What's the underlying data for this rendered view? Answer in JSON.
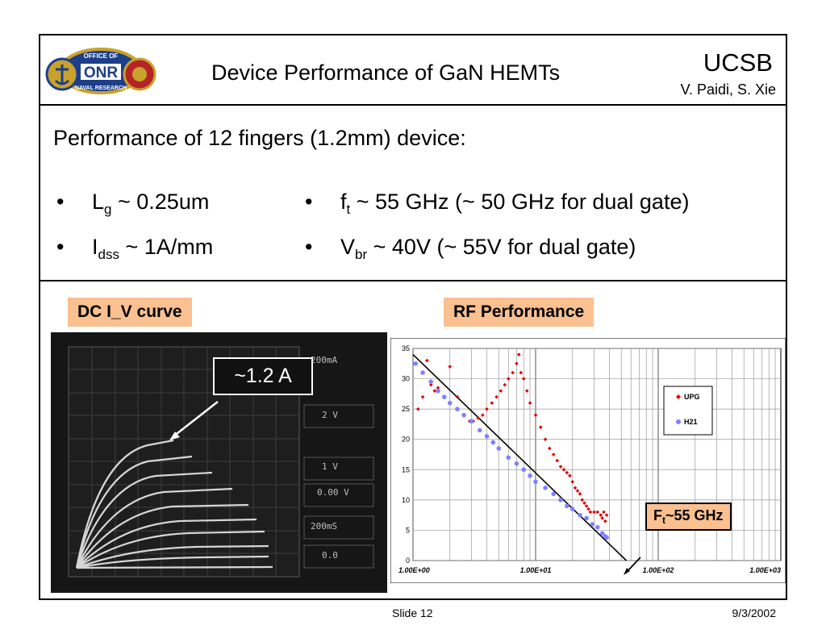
{
  "header": {
    "title": "Device Performance of GaN HEMTs",
    "org": "UCSB",
    "authors": "V. Paidi, S. Xie",
    "logo": {
      "top_text": "OFFICE OF",
      "main_text": "ONR",
      "bottom_text": "NAVAL RESEARCH"
    }
  },
  "intro": {
    "subtitle": "Performance of 12 fingers (1.2mm) device:",
    "bullets": [
      {
        "symbol": "L",
        "sub": "g",
        "text": " ~ 0.25um"
      },
      {
        "symbol": "f",
        "sub": "t",
        "text": " ~ 55 GHz (~ 50 GHz for dual gate)"
      },
      {
        "symbol": "I",
        "sub": "dss",
        "text": " ~  1A/mm"
      },
      {
        "symbol": "V",
        "sub": "br",
        "text": " ~ 40V (~ 55V for dual gate)"
      }
    ]
  },
  "dc": {
    "label": "DC I_V curve",
    "callout": "~1.2 A",
    "screen_texts": [
      "200mA",
      "2 V",
      "1 V",
      "0.00 V",
      "200mS",
      "0.0"
    ]
  },
  "rf": {
    "label": "RF Performance",
    "ft_main": "F",
    "ft_sub": "t",
    "ft_rest": "~55 GHz"
  },
  "chart_data": {
    "type": "scatter",
    "title": "",
    "xlabel": "",
    "ylabel": "",
    "x_scale": "log",
    "xlim": [
      1,
      1000
    ],
    "ylim": [
      0,
      35
    ],
    "yticks": [
      0,
      5,
      10,
      15,
      20,
      25,
      30,
      35
    ],
    "xtick_labels": [
      "1.00E+00",
      "1.00E+01",
      "1.00E+02",
      "1.00E+03"
    ],
    "grid": true,
    "legend": {
      "placement": "right",
      "entries": [
        "UPG",
        "H21"
      ]
    },
    "series": [
      {
        "name": "UPG",
        "color": "#e00000",
        "points": [
          [
            1.1,
            25
          ],
          [
            1.2,
            27
          ],
          [
            1.3,
            33
          ],
          [
            1.4,
            29
          ],
          [
            1.5,
            28
          ],
          [
            1.6,
            28.5
          ],
          [
            2.0,
            32
          ],
          [
            2.3,
            27
          ],
          [
            2.6,
            24
          ],
          [
            2.9,
            23
          ],
          [
            3.1,
            23
          ],
          [
            3.4,
            23.5
          ],
          [
            3.7,
            24
          ],
          [
            4.0,
            25
          ],
          [
            4.4,
            26
          ],
          [
            4.8,
            27
          ],
          [
            5.2,
            28
          ],
          [
            5.6,
            29
          ],
          [
            6.0,
            30
          ],
          [
            6.5,
            31
          ],
          [
            7.0,
            32.5
          ],
          [
            7.3,
            34
          ],
          [
            7.6,
            31
          ],
          [
            8.0,
            30
          ],
          [
            8.5,
            28
          ],
          [
            9.0,
            26
          ],
          [
            10,
            24
          ],
          [
            11,
            22
          ],
          [
            12,
            20
          ],
          [
            13,
            18.5
          ],
          [
            14,
            17.5
          ],
          [
            15,
            16.5
          ],
          [
            16,
            15.5
          ],
          [
            17,
            15
          ],
          [
            18,
            14.5
          ],
          [
            19,
            14
          ],
          [
            20,
            13
          ],
          [
            21,
            12
          ],
          [
            22,
            11.5
          ],
          [
            23,
            11
          ],
          [
            24,
            10
          ],
          [
            25,
            9.5
          ],
          [
            26,
            9
          ],
          [
            27,
            8.5
          ],
          [
            28,
            8
          ],
          [
            30,
            8
          ],
          [
            32,
            8
          ],
          [
            34,
            7.5
          ],
          [
            35,
            7
          ],
          [
            36,
            8
          ],
          [
            37,
            6.5
          ],
          [
            38,
            7.5
          ]
        ]
      },
      {
        "name": "H21",
        "color": "#8080ff",
        "points": [
          [
            1.05,
            32.5
          ],
          [
            1.2,
            31
          ],
          [
            1.4,
            29.5
          ],
          [
            1.6,
            28
          ],
          [
            1.8,
            27
          ],
          [
            2.0,
            26
          ],
          [
            2.3,
            25
          ],
          [
            2.6,
            24
          ],
          [
            3.0,
            23
          ],
          [
            3.5,
            21.5
          ],
          [
            4.0,
            20.5
          ],
          [
            4.5,
            19.5
          ],
          [
            5.0,
            18.5
          ],
          [
            6.0,
            17
          ],
          [
            7.0,
            16
          ],
          [
            8.0,
            15
          ],
          [
            9.0,
            14
          ],
          [
            10,
            13
          ],
          [
            12,
            12
          ],
          [
            14,
            11
          ],
          [
            16,
            10
          ],
          [
            18,
            9
          ],
          [
            20,
            8.5
          ],
          [
            23,
            7.5
          ],
          [
            26,
            7
          ],
          [
            29,
            6
          ],
          [
            32,
            5.5
          ],
          [
            35,
            4.5
          ],
          [
            37,
            4
          ],
          [
            38,
            3.8
          ]
        ]
      }
    ],
    "fit_line": {
      "color": "#000000",
      "points": [
        [
          1,
          34
        ],
        [
          55,
          0
        ]
      ]
    }
  }
}
